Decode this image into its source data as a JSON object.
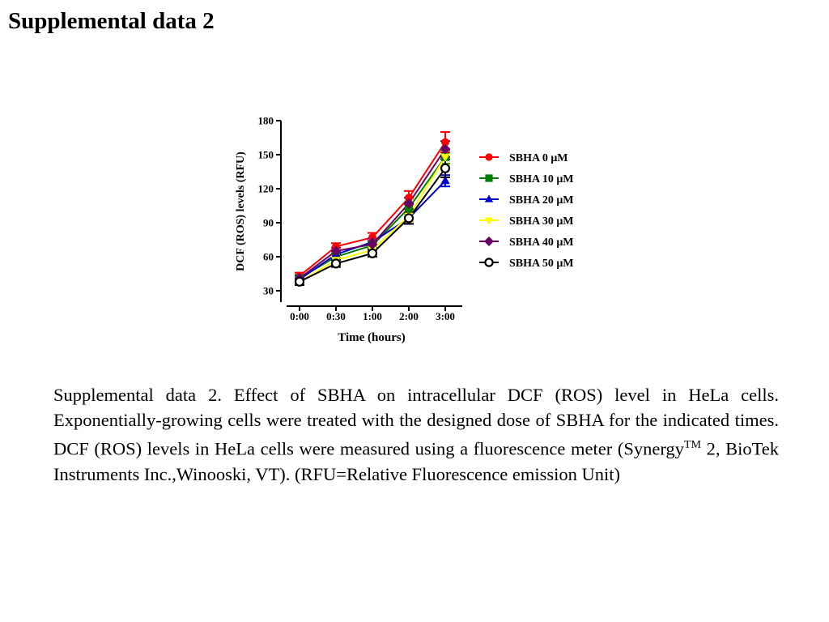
{
  "page": {
    "title": "Supplemental data 2"
  },
  "caption": {
    "part1": "Supplemental data 2. Effect of SBHA on intracellular DCF (ROS) level in HeLa cells. Exponentially-growing cells were treated with the designed dose of SBHA for the indicated times. DCF (ROS) levels in HeLa cells were measured using a fluorescence meter (Synergy",
    "trademark": "TM",
    "part2": " 2, BioTek Instruments Inc.,Winooski, VT). (RFU=Relative Fluorescence emission Unit)"
  },
  "chart_data": {
    "type": "line",
    "title": "",
    "xlabel": "Time (hours)",
    "ylabel": "DCF (ROS) levels (RFU)",
    "categories": [
      "0:00",
      "0:30",
      "1:00",
      "2:00",
      "3:00"
    ],
    "ylim": [
      25,
      180
    ],
    "yticks": [
      30,
      60,
      90,
      120,
      150,
      180
    ],
    "grid": false,
    "legend_position": "right",
    "series": [
      {
        "name": "SBHA 0 μM",
        "color": "#ff0000",
        "marker": "circle",
        "values": [
          43,
          69,
          77,
          112,
          161
        ],
        "errors": [
          3,
          3,
          4,
          6,
          9
        ]
      },
      {
        "name": "SBHA 10 μM",
        "color": "#008000",
        "marker": "square",
        "values": [
          41,
          60,
          70,
          103,
          148
        ],
        "errors": [
          3,
          3,
          3,
          5,
          6
        ]
      },
      {
        "name": "SBHA 20 μM",
        "color": "#0000cc",
        "marker": "triangle-up",
        "values": [
          40,
          62,
          73,
          94,
          127
        ],
        "errors": [
          3,
          3,
          3,
          5,
          5
        ]
      },
      {
        "name": "SBHA 30 μM",
        "color": "#ffff00",
        "marker": "triangle-down",
        "values": [
          38,
          57,
          66,
          96,
          148
        ],
        "errors": [
          3,
          3,
          3,
          5,
          7
        ]
      },
      {
        "name": "SBHA 40 μM",
        "color": "#660066",
        "marker": "diamond",
        "values": [
          41,
          65,
          71,
          107,
          155
        ],
        "errors": [
          3,
          3,
          3,
          5,
          7
        ]
      },
      {
        "name": "SBHA 50 μM",
        "color": "#000000",
        "marker": "open-circle",
        "values": [
          38,
          54,
          63,
          94,
          138
        ],
        "errors": [
          3,
          3,
          3,
          5,
          8
        ]
      }
    ]
  }
}
